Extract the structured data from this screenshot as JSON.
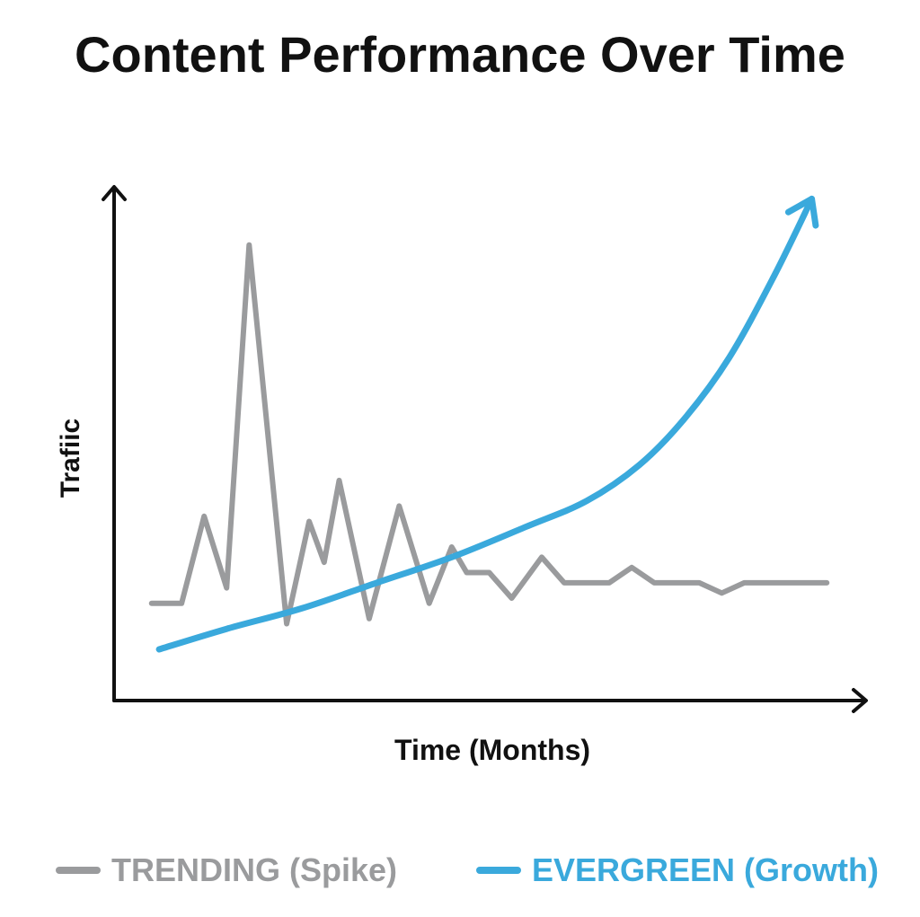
{
  "chart_data": {
    "type": "line",
    "title": "Content Performance Over Time",
    "xlabel": "Time (Months)",
    "ylabel": "Trafiic",
    "ylim": [
      0,
      100
    ],
    "xlim": [
      0,
      100
    ],
    "grid": false,
    "legend_position": "bottom",
    "series": [
      {
        "name": "TRENDING (Spike)",
        "color": "#9a9b9d",
        "points": [
          [
            5,
            19
          ],
          [
            9,
            19
          ],
          [
            12,
            36
          ],
          [
            15,
            22
          ],
          [
            18,
            89
          ],
          [
            23,
            15
          ],
          [
            26,
            35
          ],
          [
            28,
            27
          ],
          [
            30,
            43
          ],
          [
            34,
            16
          ],
          [
            38,
            38
          ],
          [
            42,
            19
          ],
          [
            45,
            30
          ],
          [
            47,
            25
          ],
          [
            50,
            25
          ],
          [
            53,
            20
          ],
          [
            57,
            28
          ],
          [
            60,
            23
          ],
          [
            66,
            23
          ],
          [
            69,
            26
          ],
          [
            72,
            23
          ],
          [
            78,
            23
          ],
          [
            81,
            21
          ],
          [
            84,
            23
          ],
          [
            95,
            23
          ]
        ]
      },
      {
        "name": "EVERGREEN (Growth)",
        "color": "#3aa9dc",
        "points": [
          [
            6,
            10
          ],
          [
            15,
            14
          ],
          [
            25,
            18
          ],
          [
            35,
            23
          ],
          [
            45,
            28
          ],
          [
            55,
            34
          ],
          [
            63,
            39
          ],
          [
            70,
            46
          ],
          [
            76,
            55
          ],
          [
            82,
            67
          ],
          [
            88,
            83
          ],
          [
            93,
            98
          ]
        ]
      }
    ]
  }
}
